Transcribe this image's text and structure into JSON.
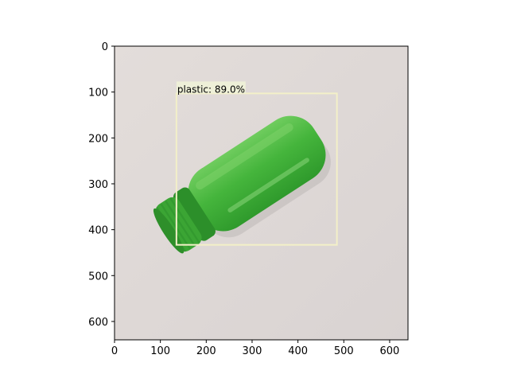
{
  "chart_data": {
    "type": "image",
    "title": "",
    "xlabel": "",
    "ylabel": "",
    "xlim": [
      0,
      640
    ],
    "ylim": [
      640,
      0
    ],
    "xticks": [
      0,
      100,
      200,
      300,
      400,
      500,
      600
    ],
    "yticks": [
      0,
      100,
      200,
      300,
      400,
      500,
      600
    ],
    "grid": false,
    "detection": {
      "label_text": "plastic: 89.0%",
      "class": "plastic",
      "confidence": 89.0,
      "box": {
        "x0": 135,
        "y0": 103,
        "x1": 485,
        "y1": 433
      }
    },
    "colors": {
      "background": "#e2dcdb",
      "box": "#f3f0c8",
      "label_bg": "#eef0d8",
      "bottle": "#45b53c",
      "bottle_dark": "#2c8f2a",
      "bottle_light": "#7bd067"
    },
    "image_content": {
      "object": "green-bottle-icon"
    }
  }
}
